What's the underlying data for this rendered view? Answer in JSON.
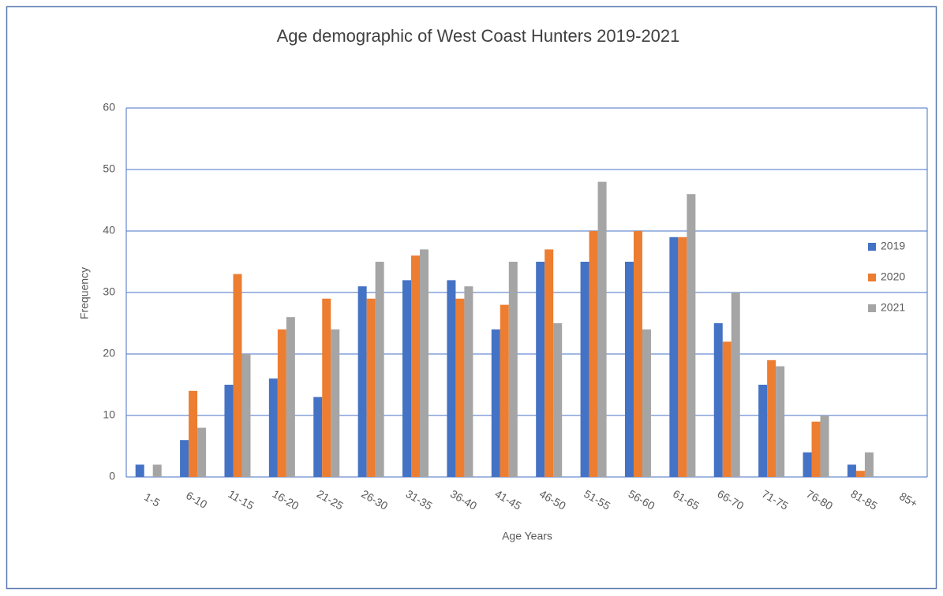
{
  "chart_data": {
    "type": "bar",
    "title": "Age demographic  of West Coast Hunters 2019-2021",
    "x_label": "Age Years",
    "y_label": "Frequency",
    "categories": [
      "1-5",
      "6-10",
      "11-15",
      "16-20",
      "21-25",
      "26-30",
      "31-35",
      "36-40",
      "41-45",
      "46-50",
      "51-55",
      "56-60",
      "61-65",
      "66-70",
      "71-75",
      "76-80",
      "81-85",
      "85+"
    ],
    "series": [
      {
        "name": "2019",
        "color": "#4472c4",
        "values": [
          2,
          6,
          15,
          16,
          13,
          31,
          32,
          32,
          24,
          35,
          35,
          35,
          39,
          25,
          15,
          4,
          2,
          0
        ]
      },
      {
        "name": "2020",
        "color": "#ed7d31",
        "values": [
          0,
          14,
          33,
          24,
          29,
          29,
          36,
          29,
          28,
          37,
          40,
          40,
          39,
          22,
          19,
          9,
          1,
          0
        ]
      },
      {
        "name": "2021",
        "color": "#a5a5a5",
        "values": [
          2,
          8,
          20,
          26,
          24,
          35,
          37,
          31,
          35,
          25,
          48,
          24,
          46,
          30,
          18,
          10,
          4,
          0
        ]
      }
    ],
    "ylim": [
      0,
      60
    ],
    "yticks": [
      0,
      10,
      20,
      30,
      40,
      50,
      60
    ],
    "grid": true,
    "legend": "right"
  }
}
